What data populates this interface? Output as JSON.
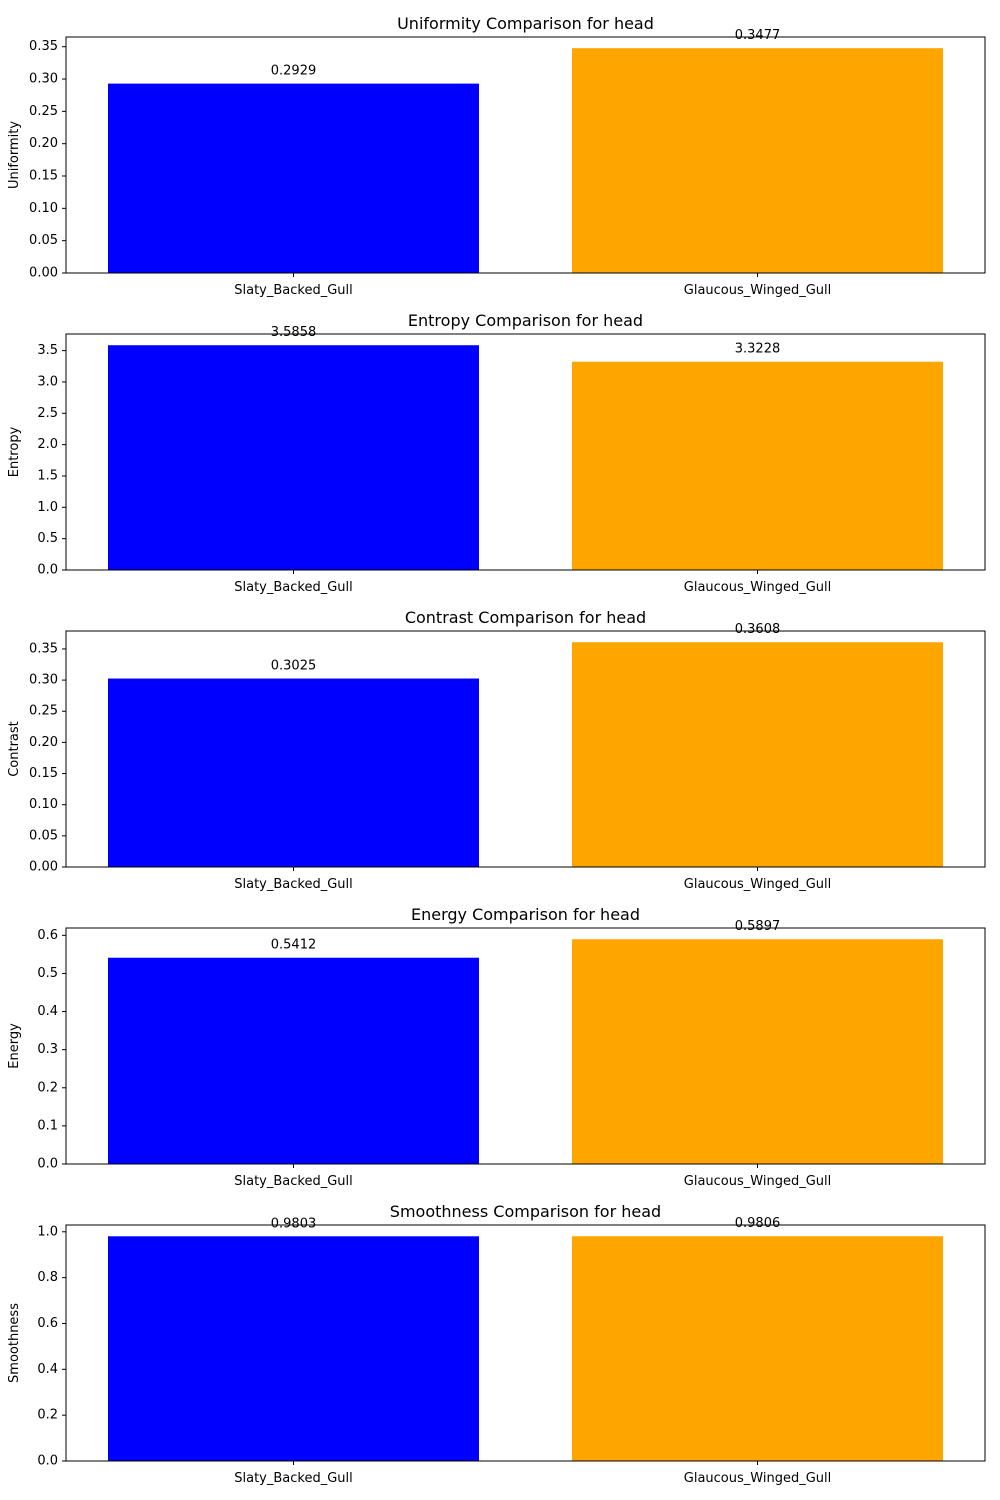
{
  "chart_data": [
    {
      "type": "bar",
      "title": "Uniformity Comparison for head",
      "ylabel": "Uniformity",
      "xlabel": "",
      "categories": [
        "Slaty_Backed_Gull",
        "Glaucous_Winged_Gull"
      ],
      "values": [
        0.2929,
        0.3477
      ],
      "value_labels": [
        "0.2929",
        "0.3477"
      ],
      "colors": [
        "#0000ff",
        "#ffa500"
      ],
      "ylim": [
        0,
        0.365
      ],
      "yticks": [
        0,
        0.05,
        0.1,
        0.15,
        0.2,
        0.25,
        0.3,
        0.35
      ],
      "ytick_labels": [
        "0.00",
        "0.05",
        "0.10",
        "0.15",
        "0.20",
        "0.25",
        "0.30",
        "0.35"
      ],
      "grid": false
    },
    {
      "type": "bar",
      "title": "Entropy Comparison for head",
      "ylabel": "Entropy",
      "xlabel": "",
      "categories": [
        "Slaty_Backed_Gull",
        "Glaucous_Winged_Gull"
      ],
      "values": [
        3.5858,
        3.3228
      ],
      "value_labels": [
        "3.5858",
        "3.3228"
      ],
      "colors": [
        "#0000ff",
        "#ffa500"
      ],
      "ylim": [
        0,
        3.765
      ],
      "yticks": [
        0,
        0.5,
        1.0,
        1.5,
        2.0,
        2.5,
        3.0,
        3.5
      ],
      "ytick_labels": [
        "0.0",
        "0.5",
        "1.0",
        "1.5",
        "2.0",
        "2.5",
        "3.0",
        "3.5"
      ],
      "grid": false
    },
    {
      "type": "bar",
      "title": "Contrast Comparison for head",
      "ylabel": "Contrast",
      "xlabel": "",
      "categories": [
        "Slaty_Backed_Gull",
        "Glaucous_Winged_Gull"
      ],
      "values": [
        0.3025,
        0.3608
      ],
      "value_labels": [
        "0.3025",
        "0.3608"
      ],
      "colors": [
        "#0000ff",
        "#ffa500"
      ],
      "ylim": [
        0,
        0.3788
      ],
      "yticks": [
        0,
        0.05,
        0.1,
        0.15,
        0.2,
        0.25,
        0.3,
        0.35
      ],
      "ytick_labels": [
        "0.00",
        "0.05",
        "0.10",
        "0.15",
        "0.20",
        "0.25",
        "0.30",
        "0.35"
      ],
      "grid": false
    },
    {
      "type": "bar",
      "title": "Energy Comparison for head",
      "ylabel": "Energy",
      "xlabel": "",
      "categories": [
        "Slaty_Backed_Gull",
        "Glaucous_Winged_Gull"
      ],
      "values": [
        0.5412,
        0.5897
      ],
      "value_labels": [
        "0.5412",
        "0.5897"
      ],
      "colors": [
        "#0000ff",
        "#ffa500"
      ],
      "ylim": [
        0,
        0.6192
      ],
      "yticks": [
        0,
        0.1,
        0.2,
        0.3,
        0.4,
        0.5,
        0.6
      ],
      "ytick_labels": [
        "0.0",
        "0.1",
        "0.2",
        "0.3",
        "0.4",
        "0.5",
        "0.6"
      ],
      "grid": false
    },
    {
      "type": "bar",
      "title": "Smoothness Comparison for head",
      "ylabel": "Smoothness",
      "xlabel": "",
      "categories": [
        "Slaty_Backed_Gull",
        "Glaucous_Winged_Gull"
      ],
      "values": [
        0.9803,
        0.9806
      ],
      "value_labels": [
        "0.9803",
        "0.9806"
      ],
      "colors": [
        "#0000ff",
        "#ffa500"
      ],
      "ylim": [
        0,
        1.0296
      ],
      "yticks": [
        0,
        0.2,
        0.4,
        0.6,
        0.8,
        1.0
      ],
      "ytick_labels": [
        "0.0",
        "0.2",
        "0.4",
        "0.6",
        "0.8",
        "1.0"
      ],
      "grid": false
    }
  ]
}
